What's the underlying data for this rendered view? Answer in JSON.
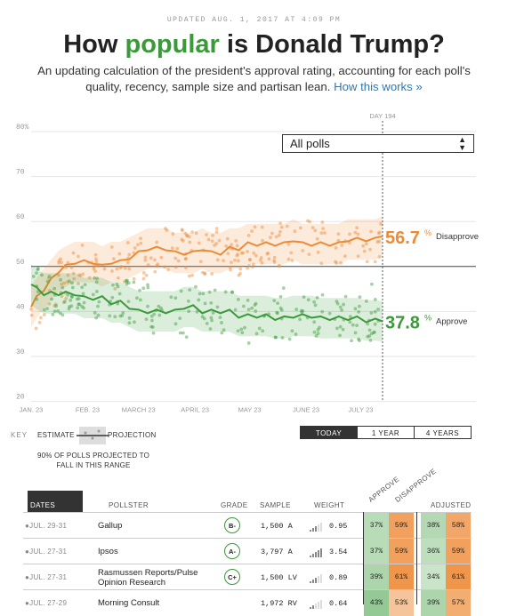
{
  "header": {
    "updated": "UPDATED AUG. 1, 2017 AT 4:09 PM",
    "title_pre": "How ",
    "title_em": "popular",
    "title_post": " is Donald Trump?",
    "subtitle": "An updating calculation of the president's approval rating, accounting for each poll's quality, recency, sample size and partisan lean.",
    "how_link": "How this works »"
  },
  "controls": {
    "dropdown": "All polls",
    "range_buttons": [
      "TODAY",
      "1 YEAR",
      "4 YEARS"
    ],
    "active_range": "TODAY"
  },
  "key": {
    "label": "KEY",
    "estimate": "ESTIMATE",
    "projection": "PROJECTION",
    "note": "90% OF POLLS PROJECTED TO FALL IN THIS RANGE"
  },
  "colors": {
    "approve": "#3a9a3a",
    "disapprove": "#ed8a35"
  },
  "chart_data": {
    "type": "line",
    "day_label": "DAY 194",
    "x_ticks": [
      "JAN. 23",
      "FEB. 23",
      "MARCH 23",
      "APRIL 23",
      "MAY 23",
      "JUNE 23",
      "JULY 23"
    ],
    "y_ticks": [
      "80%",
      "70",
      "60",
      "50",
      "40",
      "30",
      "20"
    ],
    "ylim": [
      20,
      80
    ],
    "xlim_days": [
      1,
      194
    ],
    "x_unit": "day of presidency",
    "series": [
      {
        "name": "Disapprove",
        "final_value": "56.7",
        "points": [
          [
            1,
            41
          ],
          [
            4,
            43
          ],
          [
            8,
            45
          ],
          [
            12,
            47
          ],
          [
            16,
            49
          ],
          [
            20,
            50
          ],
          [
            25,
            51
          ],
          [
            30,
            51
          ],
          [
            35,
            51
          ],
          [
            40,
            50
          ],
          [
            45,
            51
          ],
          [
            50,
            51
          ],
          [
            55,
            52
          ],
          [
            60,
            53
          ],
          [
            65,
            54
          ],
          [
            70,
            54
          ],
          [
            75,
            54
          ],
          [
            80,
            53
          ],
          [
            85,
            53
          ],
          [
            90,
            53
          ],
          [
            95,
            54
          ],
          [
            100,
            53
          ],
          [
            105,
            53
          ],
          [
            110,
            54
          ],
          [
            115,
            54
          ],
          [
            120,
            55
          ],
          [
            125,
            55
          ],
          [
            130,
            55
          ],
          [
            135,
            55
          ],
          [
            140,
            55
          ],
          [
            145,
            56
          ],
          [
            150,
            55
          ],
          [
            155,
            55
          ],
          [
            160,
            55
          ],
          [
            165,
            55
          ],
          [
            170,
            55
          ],
          [
            175,
            56
          ],
          [
            180,
            56
          ],
          [
            185,
            56
          ],
          [
            190,
            56
          ],
          [
            194,
            56.7
          ]
        ]
      },
      {
        "name": "Approve",
        "final_value": "37.8",
        "points": [
          [
            1,
            46
          ],
          [
            4,
            45
          ],
          [
            8,
            44
          ],
          [
            12,
            44
          ],
          [
            16,
            44
          ],
          [
            20,
            44
          ],
          [
            25,
            44
          ],
          [
            30,
            43
          ],
          [
            35,
            43
          ],
          [
            40,
            43
          ],
          [
            45,
            42
          ],
          [
            50,
            42
          ],
          [
            55,
            41
          ],
          [
            60,
            40
          ],
          [
            65,
            40
          ],
          [
            70,
            40
          ],
          [
            75,
            40
          ],
          [
            80,
            40
          ],
          [
            85,
            41
          ],
          [
            90,
            41
          ],
          [
            95,
            40
          ],
          [
            100,
            40
          ],
          [
            105,
            40
          ],
          [
            110,
            40
          ],
          [
            115,
            39
          ],
          [
            120,
            39
          ],
          [
            125,
            39
          ],
          [
            130,
            39
          ],
          [
            135,
            38.5
          ],
          [
            140,
            38.5
          ],
          [
            145,
            39
          ],
          [
            150,
            39
          ],
          [
            155,
            39
          ],
          [
            160,
            38.5
          ],
          [
            165,
            38.5
          ],
          [
            170,
            38.5
          ],
          [
            175,
            38.5
          ],
          [
            180,
            38.5
          ],
          [
            185,
            38
          ],
          [
            190,
            38
          ],
          [
            194,
            37.8
          ]
        ]
      }
    ]
  },
  "table": {
    "columns": [
      "DATES",
      "POLLSTER",
      "GRADE",
      "SAMPLE",
      "WEIGHT",
      "APPROVE",
      "DISAPPROVE",
      "ADJUSTED"
    ],
    "rows": [
      {
        "date": "JUL. 29-31",
        "pollster": "Gallup",
        "grade": "B-",
        "sample": "1,500 A",
        "weight": "0.95",
        "bars": 3,
        "approve": "37%",
        "disapprove": "59%",
        "adj_approve": "38%",
        "adj_disapprove": "58%"
      },
      {
        "date": "JUL. 27-31",
        "pollster": "Ipsos",
        "grade": "A-",
        "sample": "3,797 A",
        "weight": "3.54",
        "bars": 5,
        "approve": "37%",
        "disapprove": "59%",
        "adj_approve": "36%",
        "adj_disapprove": "59%"
      },
      {
        "date": "JUL. 27-31",
        "pollster": "Rasmussen Reports/Pulse Opinion Research",
        "grade": "C+",
        "sample": "1,500 LV",
        "weight": "0.89",
        "bars": 3,
        "approve": "39%",
        "disapprove": "61%",
        "adj_approve": "34%",
        "adj_disapprove": "61%"
      },
      {
        "date": "JUL. 27-29",
        "pollster": "Morning Consult",
        "grade": "",
        "sample": "1,972 RV",
        "weight": "0.64",
        "bars": 2,
        "approve": "43%",
        "disapprove": "53%",
        "adj_approve": "39%",
        "adj_disapprove": "57%"
      }
    ]
  }
}
